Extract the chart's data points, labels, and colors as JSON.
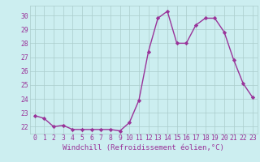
{
  "x": [
    0,
    1,
    2,
    3,
    4,
    5,
    6,
    7,
    8,
    9,
    10,
    11,
    12,
    13,
    14,
    15,
    16,
    17,
    18,
    19,
    20,
    21,
    22,
    23
  ],
  "y": [
    22.8,
    22.6,
    22.0,
    22.1,
    21.8,
    21.8,
    21.8,
    21.8,
    21.8,
    21.7,
    22.3,
    23.9,
    27.4,
    29.8,
    30.3,
    28.0,
    28.0,
    29.3,
    29.8,
    29.8,
    28.8,
    26.8,
    25.1,
    24.1
  ],
  "line_color": "#993399",
  "marker": "D",
  "marker_size": 2.2,
  "linewidth": 1.0,
  "xlabel": "Windchill (Refroidissement éolien,°C)",
  "ylim": [
    21.5,
    30.7
  ],
  "xlim": [
    -0.5,
    23.5
  ],
  "yticks": [
    22,
    23,
    24,
    25,
    26,
    27,
    28,
    29,
    30
  ],
  "xticks": [
    0,
    1,
    2,
    3,
    4,
    5,
    6,
    7,
    8,
    9,
    10,
    11,
    12,
    13,
    14,
    15,
    16,
    17,
    18,
    19,
    20,
    21,
    22,
    23
  ],
  "bg_color": "#cceef0",
  "grid_color": "#aacccc",
  "axis_color": "#993399",
  "label_fontsize": 6.5,
  "tick_fontsize": 5.8
}
